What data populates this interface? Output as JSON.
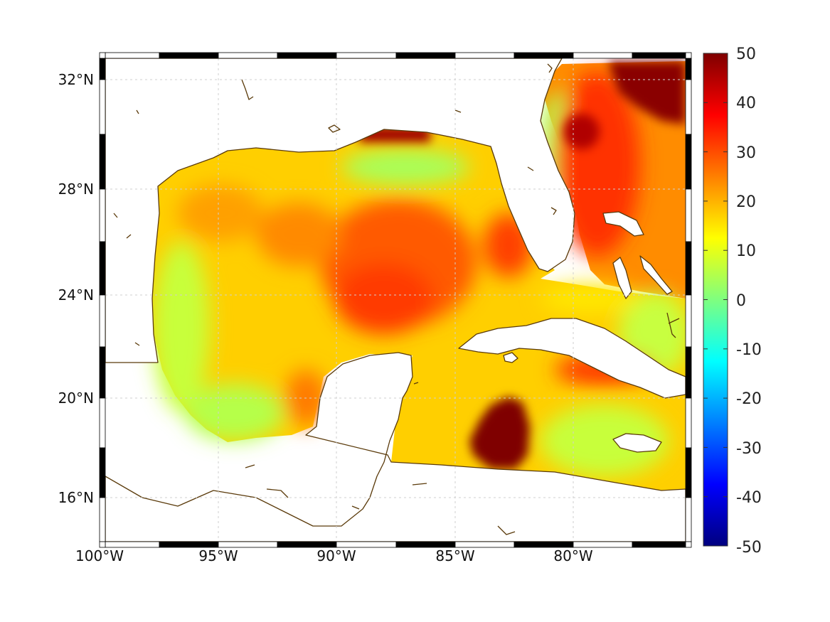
{
  "map": {
    "x_ticks": [
      "100°W",
      "95°W",
      "90°W",
      "85°W",
      "80°W"
    ],
    "y_ticks": [
      "32°N",
      "28°N",
      "24°N",
      "20°N",
      "16°N"
    ],
    "colorbar": {
      "ticks": [
        "50",
        "40",
        "30",
        "20",
        "10",
        "0",
        "-10",
        "-20",
        "-30",
        "-40",
        "-50"
      ],
      "colors": [
        "#00007f",
        "#0000ff",
        "#007fff",
        "#00ffff",
        "#7fff7f",
        "#ffff00",
        "#ff7f00",
        "#ff0000",
        "#7f0000"
      ],
      "range": [
        -50,
        50
      ]
    },
    "coastline_color": "#5a3a0a",
    "field_description_colors": {
      "high": "#7f0000",
      "mid_high": "#ff4000",
      "mid": "#ff9a00",
      "low_mid": "#ffff00",
      "low": "#9fff5f"
    }
  }
}
